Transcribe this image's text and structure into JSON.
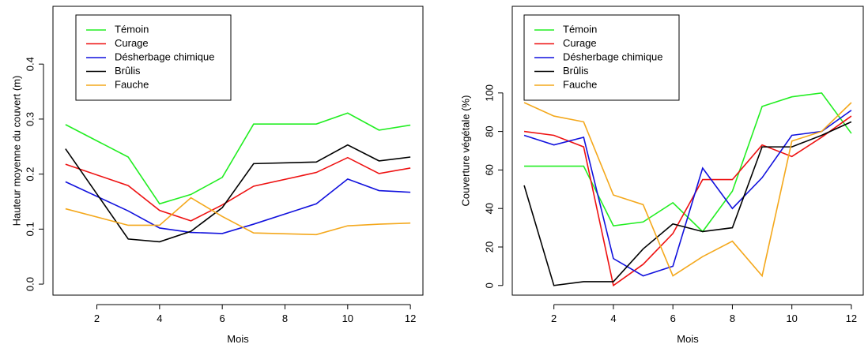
{
  "chart_data": [
    {
      "type": "line",
      "title": "",
      "xlabel": "Mois",
      "ylabel": "Hauteur moyenne du couvert (m)",
      "xlim": [
        0.6,
        12.4
      ],
      "ylim": [
        -0.02,
        0.505
      ],
      "xticks": [
        2,
        4,
        6,
        8,
        10,
        12
      ],
      "yticks": [
        0.0,
        0.1,
        0.2,
        0.3,
        0.4
      ],
      "ytick_labels": [
        "0.0",
        "0.1",
        "0.2",
        "0.3",
        "0.4"
      ],
      "grid": false,
      "legend_position": "top-left",
      "x": [
        1,
        3,
        4,
        5,
        6,
        7,
        9,
        10,
        11,
        12
      ],
      "series": [
        {
          "name": "Témoin",
          "color": "#22ee22",
          "values": [
            0.29,
            0.231,
            0.146,
            0.163,
            0.194,
            0.291,
            0.291,
            0.311,
            0.28,
            0.289
          ]
        },
        {
          "name": "Curage",
          "color": "#ee1111",
          "values": [
            0.218,
            0.179,
            0.134,
            0.115,
            0.144,
            0.178,
            0.203,
            0.23,
            0.201,
            0.211
          ]
        },
        {
          "name": "Désherbage chimique",
          "color": "#1111dd",
          "values": [
            0.186,
            0.133,
            0.102,
            0.094,
            0.092,
            0.109,
            0.146,
            0.191,
            0.17,
            0.167
          ]
        },
        {
          "name": "Brûlis",
          "color": "#000000",
          "values": [
            0.246,
            0.082,
            0.077,
            0.096,
            0.139,
            0.219,
            0.222,
            0.253,
            0.224,
            0.231
          ]
        },
        {
          "name": "Fauche",
          "color": "#f4a81c",
          "values": [
            0.137,
            0.107,
            0.107,
            0.157,
            0.123,
            0.093,
            0.09,
            0.106,
            0.109,
            0.111
          ]
        }
      ]
    },
    {
      "type": "line",
      "title": "",
      "xlabel": "Mois",
      "ylabel": "Couverture végétale (%)",
      "xlim": [
        0.6,
        12.4
      ],
      "ylim": [
        -5,
        145
      ],
      "xticks": [
        2,
        4,
        6,
        8,
        10,
        12
      ],
      "yticks": [
        0,
        20,
        40,
        60,
        80,
        100
      ],
      "ytick_labels": [
        "0",
        "20",
        "40",
        "60",
        "80",
        "100"
      ],
      "grid": false,
      "legend_position": "top-left",
      "x": [
        1,
        2,
        3,
        4,
        5,
        6,
        7,
        8,
        9,
        10,
        11,
        12
      ],
      "series": [
        {
          "name": "Témoin",
          "color": "#22ee22",
          "values": [
            62,
            62,
            62,
            31,
            33,
            43,
            28,
            49,
            93,
            98,
            100,
            79
          ]
        },
        {
          "name": "Curage",
          "color": "#ee1111",
          "values": [
            80,
            78,
            72,
            0,
            11,
            27,
            55,
            55,
            73,
            67,
            77,
            88
          ]
        },
        {
          "name": "Désherbage chimique",
          "color": "#1111dd",
          "values": [
            78,
            73,
            77,
            14,
            5,
            10,
            61,
            40,
            56,
            78,
            80,
            91
          ]
        },
        {
          "name": "Brûlis",
          "color": "#000000",
          "values": [
            52,
            0,
            2,
            2,
            19,
            32,
            28,
            30,
            72,
            72,
            78,
            85
          ]
        },
        {
          "name": "Fauche",
          "color": "#f4a81c",
          "values": [
            95,
            88,
            85,
            47,
            42,
            5,
            15,
            23,
            5,
            75,
            80,
            95
          ]
        }
      ]
    }
  ]
}
